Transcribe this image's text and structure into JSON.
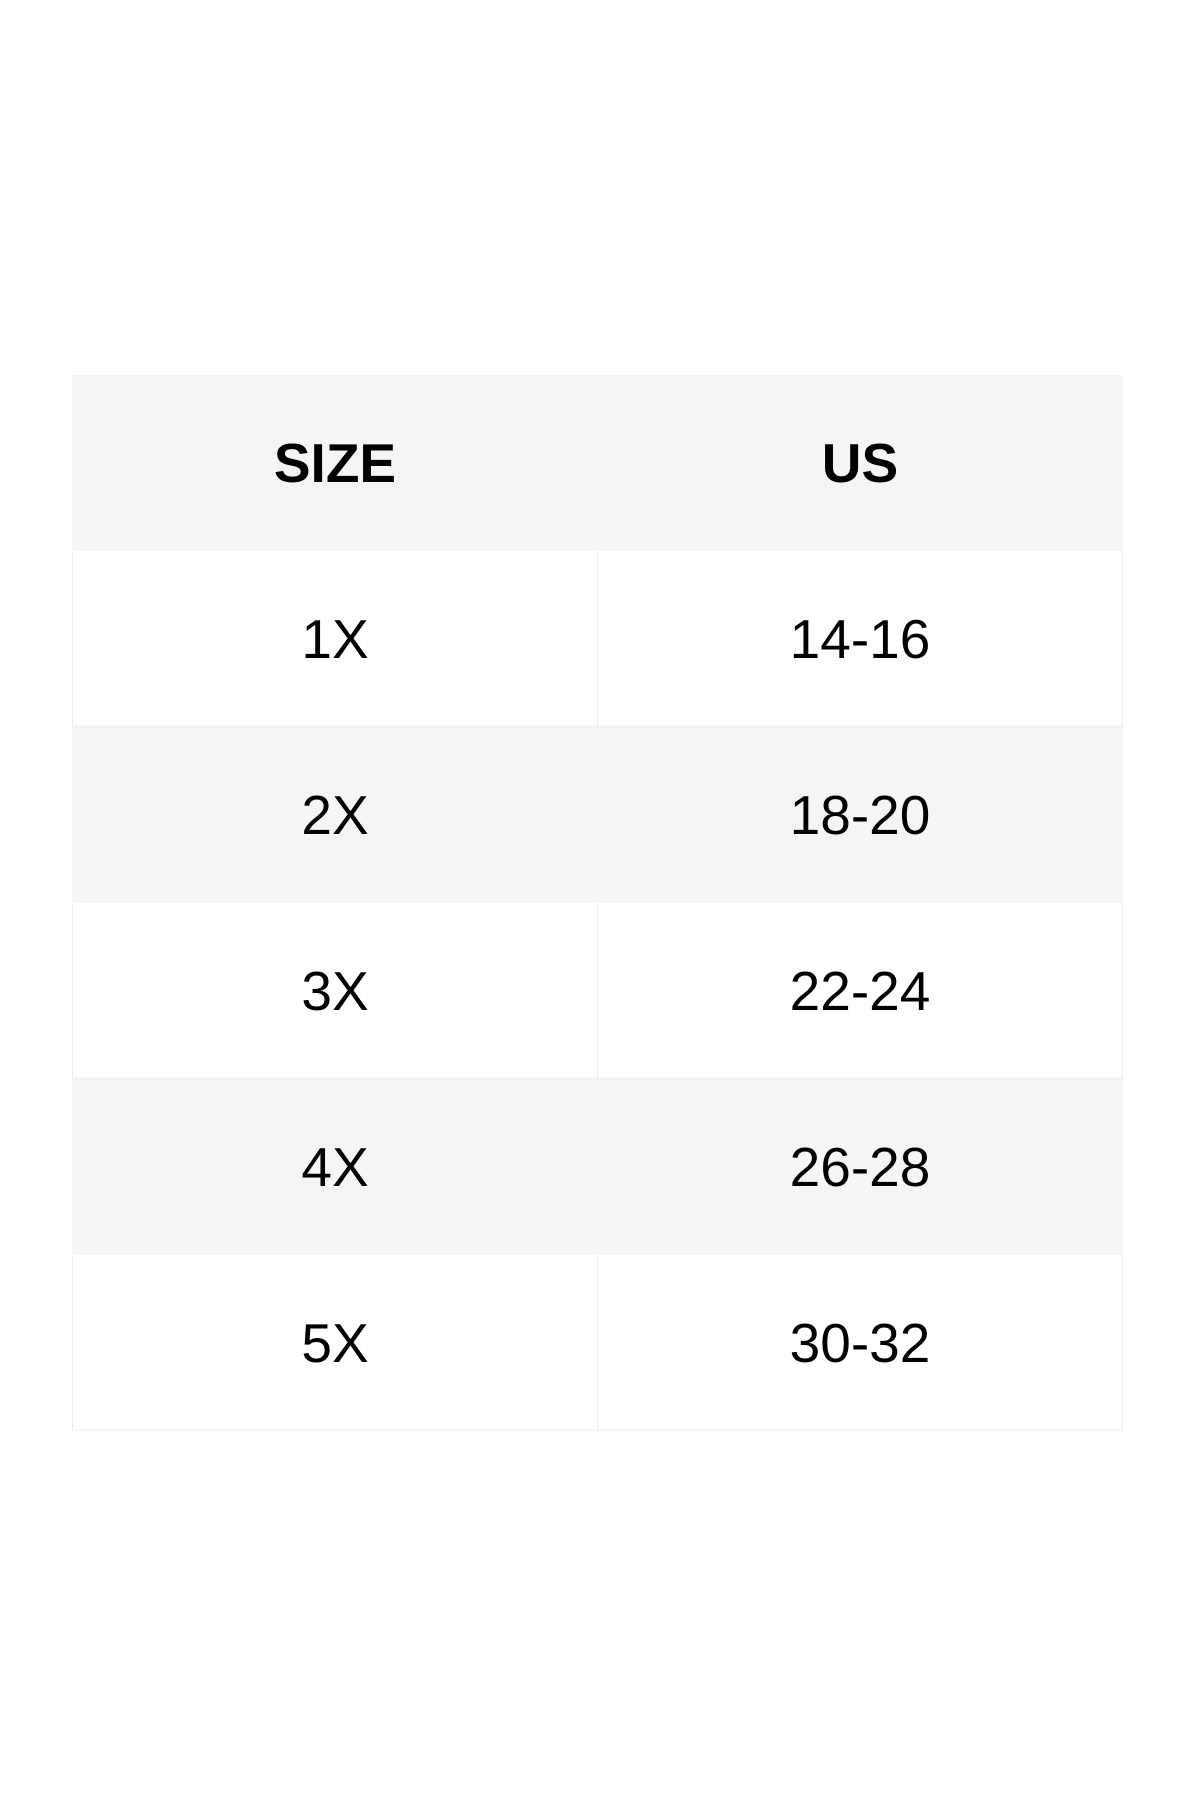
{
  "table": {
    "header": [
      "SIZE",
      "US"
    ],
    "rows": [
      [
        "1X",
        "14-16"
      ],
      [
        "2X",
        "18-20"
      ],
      [
        "3X",
        "22-24"
      ],
      [
        "4X",
        "26-28"
      ],
      [
        "5X",
        "30-32"
      ]
    ]
  }
}
